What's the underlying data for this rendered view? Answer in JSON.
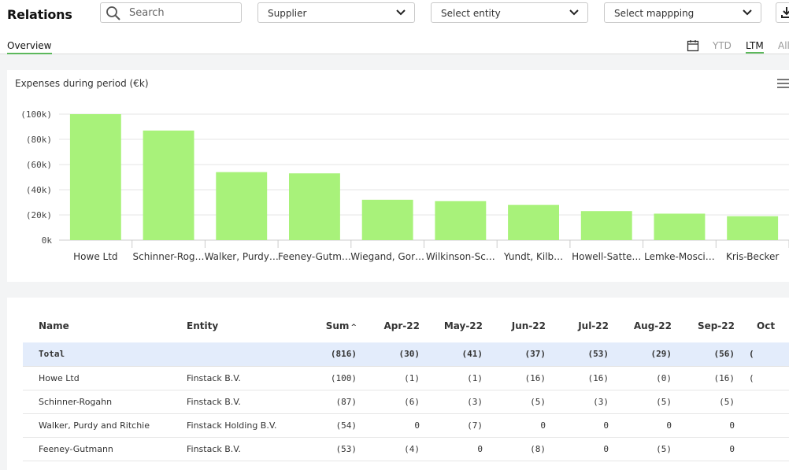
{
  "app": {
    "title": "Relations"
  },
  "search": {
    "placeholder": "Search"
  },
  "filters": {
    "supplier": "Supplier",
    "entity": "Select entity",
    "mapping": "Select mappping"
  },
  "tabs": {
    "overview": "Overview"
  },
  "periods": {
    "ytd": "YTD",
    "ltm": "LTM",
    "all": "All"
  },
  "colors": {
    "bar": "#a8f27a",
    "accent": "#5cb85c",
    "total_row": "#e3ecfb"
  },
  "chart_data": {
    "type": "bar",
    "title": "Expenses during period (€k)",
    "categories": [
      "Howe Ltd",
      "Schinner-Rog…",
      "Walker, Purdy…",
      "Feeney-Gutm…",
      "Wiegand, Gor…",
      "Wilkinson-Sc…",
      "Yundt, Kilb…",
      "Howell-Satte…",
      "Lemke-Mosci…",
      "Kris-Becker"
    ],
    "values": [
      100,
      87,
      54,
      53,
      32,
      31,
      28,
      23,
      21,
      19
    ],
    "y_ticks": [
      0,
      20,
      40,
      60,
      80,
      100
    ],
    "y_tick_labels": [
      "0k",
      "(20k)",
      "(40k)",
      "(60k)",
      "(80k)",
      "(100k)"
    ],
    "ylim": [
      0,
      100
    ],
    "xlabel": "",
    "ylabel": ""
  },
  "table": {
    "headers": {
      "name": "Name",
      "entity": "Entity",
      "sum": "Sum",
      "sort_indicator": "^",
      "months": [
        "Apr-22",
        "May-22",
        "Jun-22",
        "Jul-22",
        "Aug-22",
        "Sep-22",
        "Oct"
      ]
    },
    "total": {
      "name": "Total",
      "entity": "",
      "sum": "(816)",
      "months": [
        "(30)",
        "(41)",
        "(37)",
        "(53)",
        "(29)",
        "(56)",
        "("
      ]
    },
    "rows": [
      {
        "name": "Howe Ltd",
        "entity": "Finstack B.V.",
        "sum": "(100)",
        "months": [
          "(1)",
          "(1)",
          "(16)",
          "(16)",
          "(0)",
          "(16)",
          "("
        ]
      },
      {
        "name": "Schinner-Rogahn",
        "entity": "Finstack B.V.",
        "sum": "(87)",
        "months": [
          "(6)",
          "(3)",
          "(5)",
          "(3)",
          "(5)",
          "(5)",
          ""
        ]
      },
      {
        "name": "Walker, Purdy and Ritchie",
        "entity": "Finstack Holding B.V.",
        "sum": "(54)",
        "months": [
          "0",
          "(7)",
          "0",
          "0",
          "0",
          "0",
          ""
        ]
      },
      {
        "name": "Feeney-Gutmann",
        "entity": "Finstack B.V.",
        "sum": "(53)",
        "months": [
          "(4)",
          "0",
          "(8)",
          "0",
          "(5)",
          "0",
          ""
        ]
      }
    ]
  }
}
